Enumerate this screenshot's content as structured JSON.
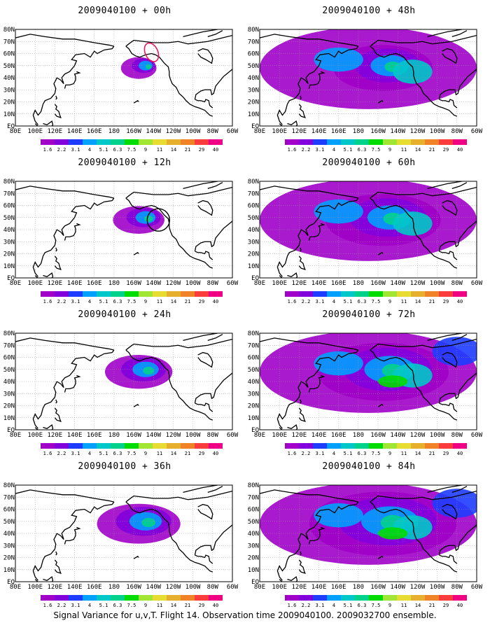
{
  "figure": {
    "caption": "Signal Variance for u,v,T. Flight 14. Observation time 2009040100. 2009032700 ensemble."
  },
  "axes": {
    "lon_labels": [
      "80E",
      "100E",
      "120E",
      "140E",
      "160E",
      "180",
      "160W",
      "140W",
      "120W",
      "100W",
      "80W",
      "60W"
    ],
    "lat_labels": [
      "EQ",
      "10N",
      "20N",
      "30N",
      "40N",
      "50N",
      "60N",
      "70N",
      "80N"
    ]
  },
  "colorbar": {
    "labels": [
      "1.6",
      "2.2",
      "3.1",
      "4",
      "5.1",
      "6.3",
      "7.5",
      "9",
      "11",
      "14",
      "21",
      "29",
      "40"
    ],
    "colors": [
      "#a000c8",
      "#8200dc",
      "#1e3cff",
      "#00a0ff",
      "#00c8c8",
      "#00d28c",
      "#00dc00",
      "#a0e632",
      "#e6dc32",
      "#e6af2d",
      "#f08228",
      "#fa3c3c",
      "#f00082"
    ]
  },
  "panels": [
    {
      "id": "p00",
      "title": "2009040100 + 00h",
      "level": 0,
      "observation": "ellipse-red"
    },
    {
      "id": "p12",
      "title": "2009040100 + 12h",
      "level": 1,
      "observation": "circle-black"
    },
    {
      "id": "p24",
      "title": "2009040100 + 24h",
      "level": 2,
      "observation": "none"
    },
    {
      "id": "p36",
      "title": "2009040100 + 36h",
      "level": 3,
      "observation": "none"
    },
    {
      "id": "p48",
      "title": "2009040100 + 48h",
      "level": 4,
      "observation": "none"
    },
    {
      "id": "p60",
      "title": "2009040100 + 60h",
      "level": 5,
      "observation": "none"
    },
    {
      "id": "p72",
      "title": "2009040100 + 72h",
      "level": 6,
      "observation": "none"
    },
    {
      "id": "p84",
      "title": "2009040100 + 84h",
      "level": 7,
      "observation": "none"
    }
  ]
}
